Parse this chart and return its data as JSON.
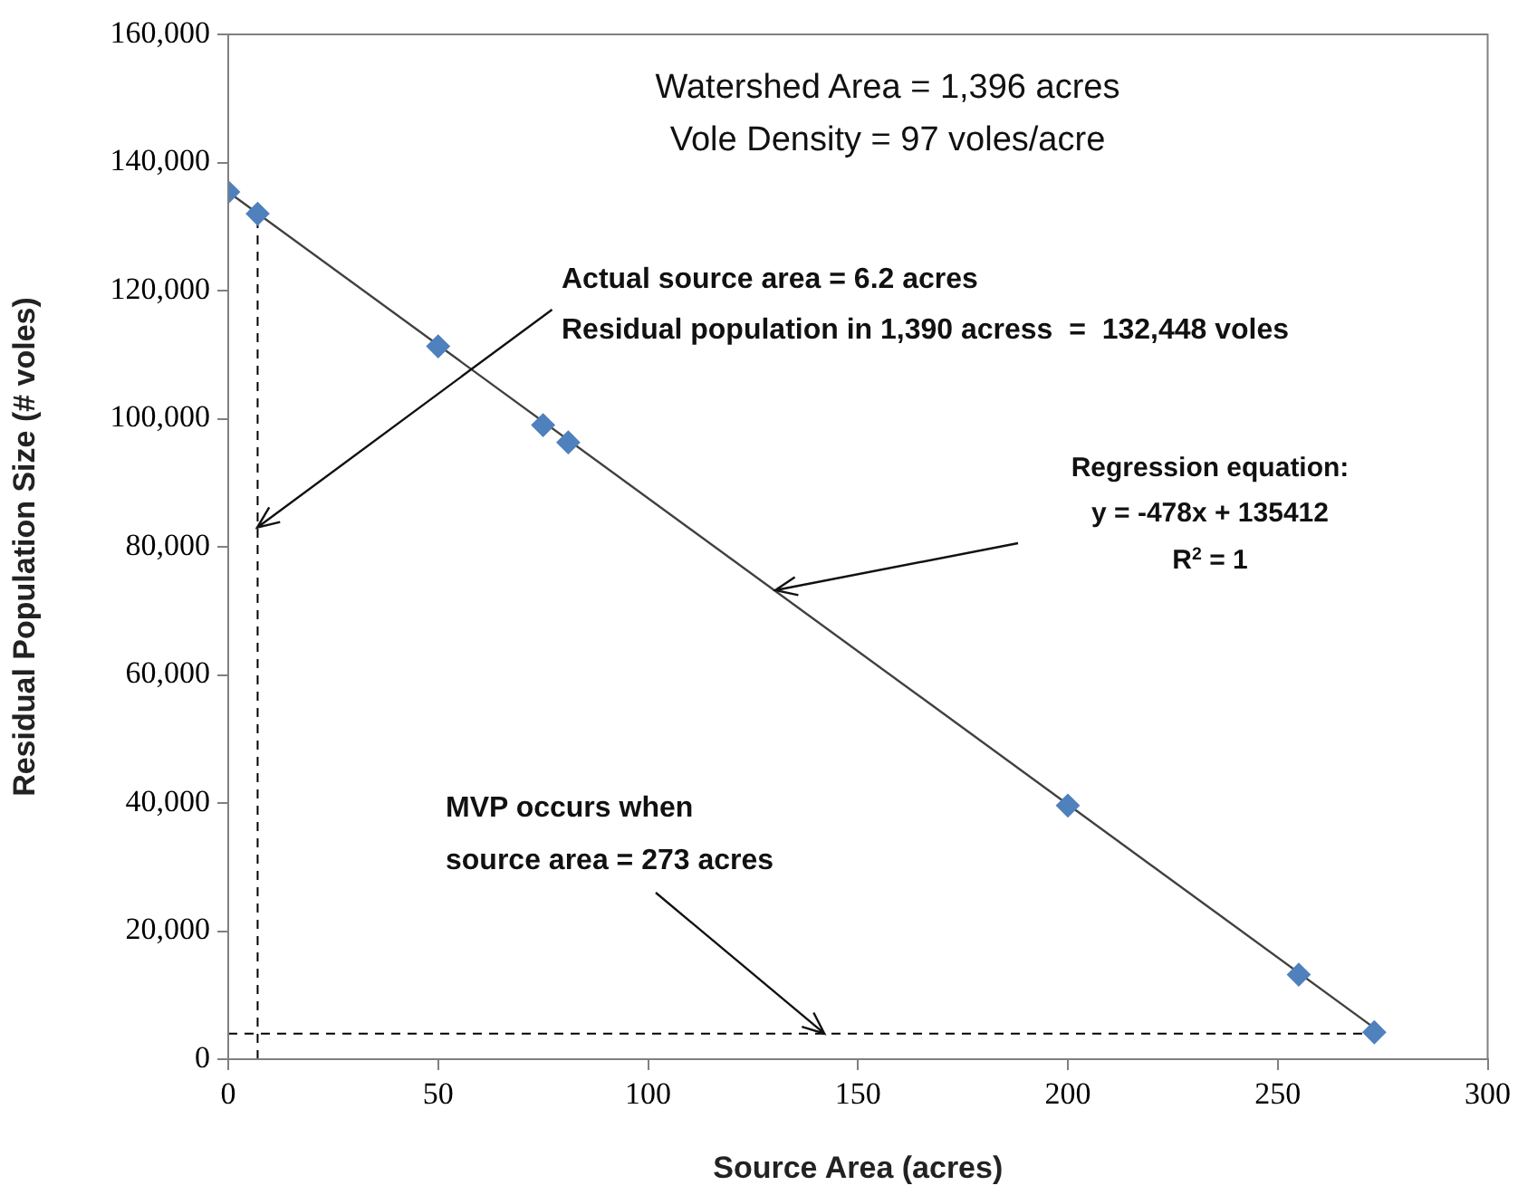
{
  "chart_data": {
    "type": "scatter",
    "xlabel": "Source Area (acres)",
    "ylabel": "Residual Population Size (# voles)",
    "xlim": [
      0,
      300
    ],
    "xticks": [
      0,
      50,
      100,
      150,
      200,
      250,
      300
    ],
    "ylim": [
      0,
      160000
    ],
    "yticks": [
      {
        "value": 0,
        "label": "0"
      },
      {
        "value": 20000,
        "label": "20,000"
      },
      {
        "value": 40000,
        "label": "40,000"
      },
      {
        "value": 60000,
        "label": "60,000"
      },
      {
        "value": 80000,
        "label": "80,000"
      },
      {
        "value": 100000,
        "label": "100,000"
      },
      {
        "value": 120000,
        "label": "120,000"
      },
      {
        "value": 140000,
        "label": "140,000"
      },
      {
        "value": 160000,
        "label": "160,000"
      }
    ],
    "grid": false,
    "legend": false,
    "marker": "diamond",
    "series": [
      {
        "color": "#4f81bd",
        "x": [
          0,
          7,
          50,
          75,
          81,
          200,
          255,
          273
        ],
        "values": [
          135400,
          132000,
          111300,
          99000,
          96300,
          39600,
          13200,
          4200
        ]
      },
      {
        "type": "line",
        "marker": "none",
        "color": "#404040",
        "x": [
          0,
          274
        ],
        "values": [
          135400,
          4400
        ]
      }
    ],
    "ref_lines": [
      {
        "axis": "x",
        "value": 7,
        "line_style": "dashed",
        "color": "#000000"
      },
      {
        "axis": "y",
        "value": 4000,
        "line_style": "dashed",
        "color": "#000000"
      }
    ],
    "annotations": [
      "Watershed Area = 1,396 acres",
      "Vole Density = 97 voles/acre",
      "Actual source area = 6.2 acres",
      {
        "text": "Residual population in 1,390 acress  =  132,448 voles",
        "x": 7,
        "y": 83000
      },
      "Regression equation:",
      "y = -478x + 135412",
      "R$^{2}$ = 1",
      "MVP occurs when",
      {
        "text": "source area = 273 acres",
        "x": 142,
        "y": 4000
      }
    ]
  }
}
